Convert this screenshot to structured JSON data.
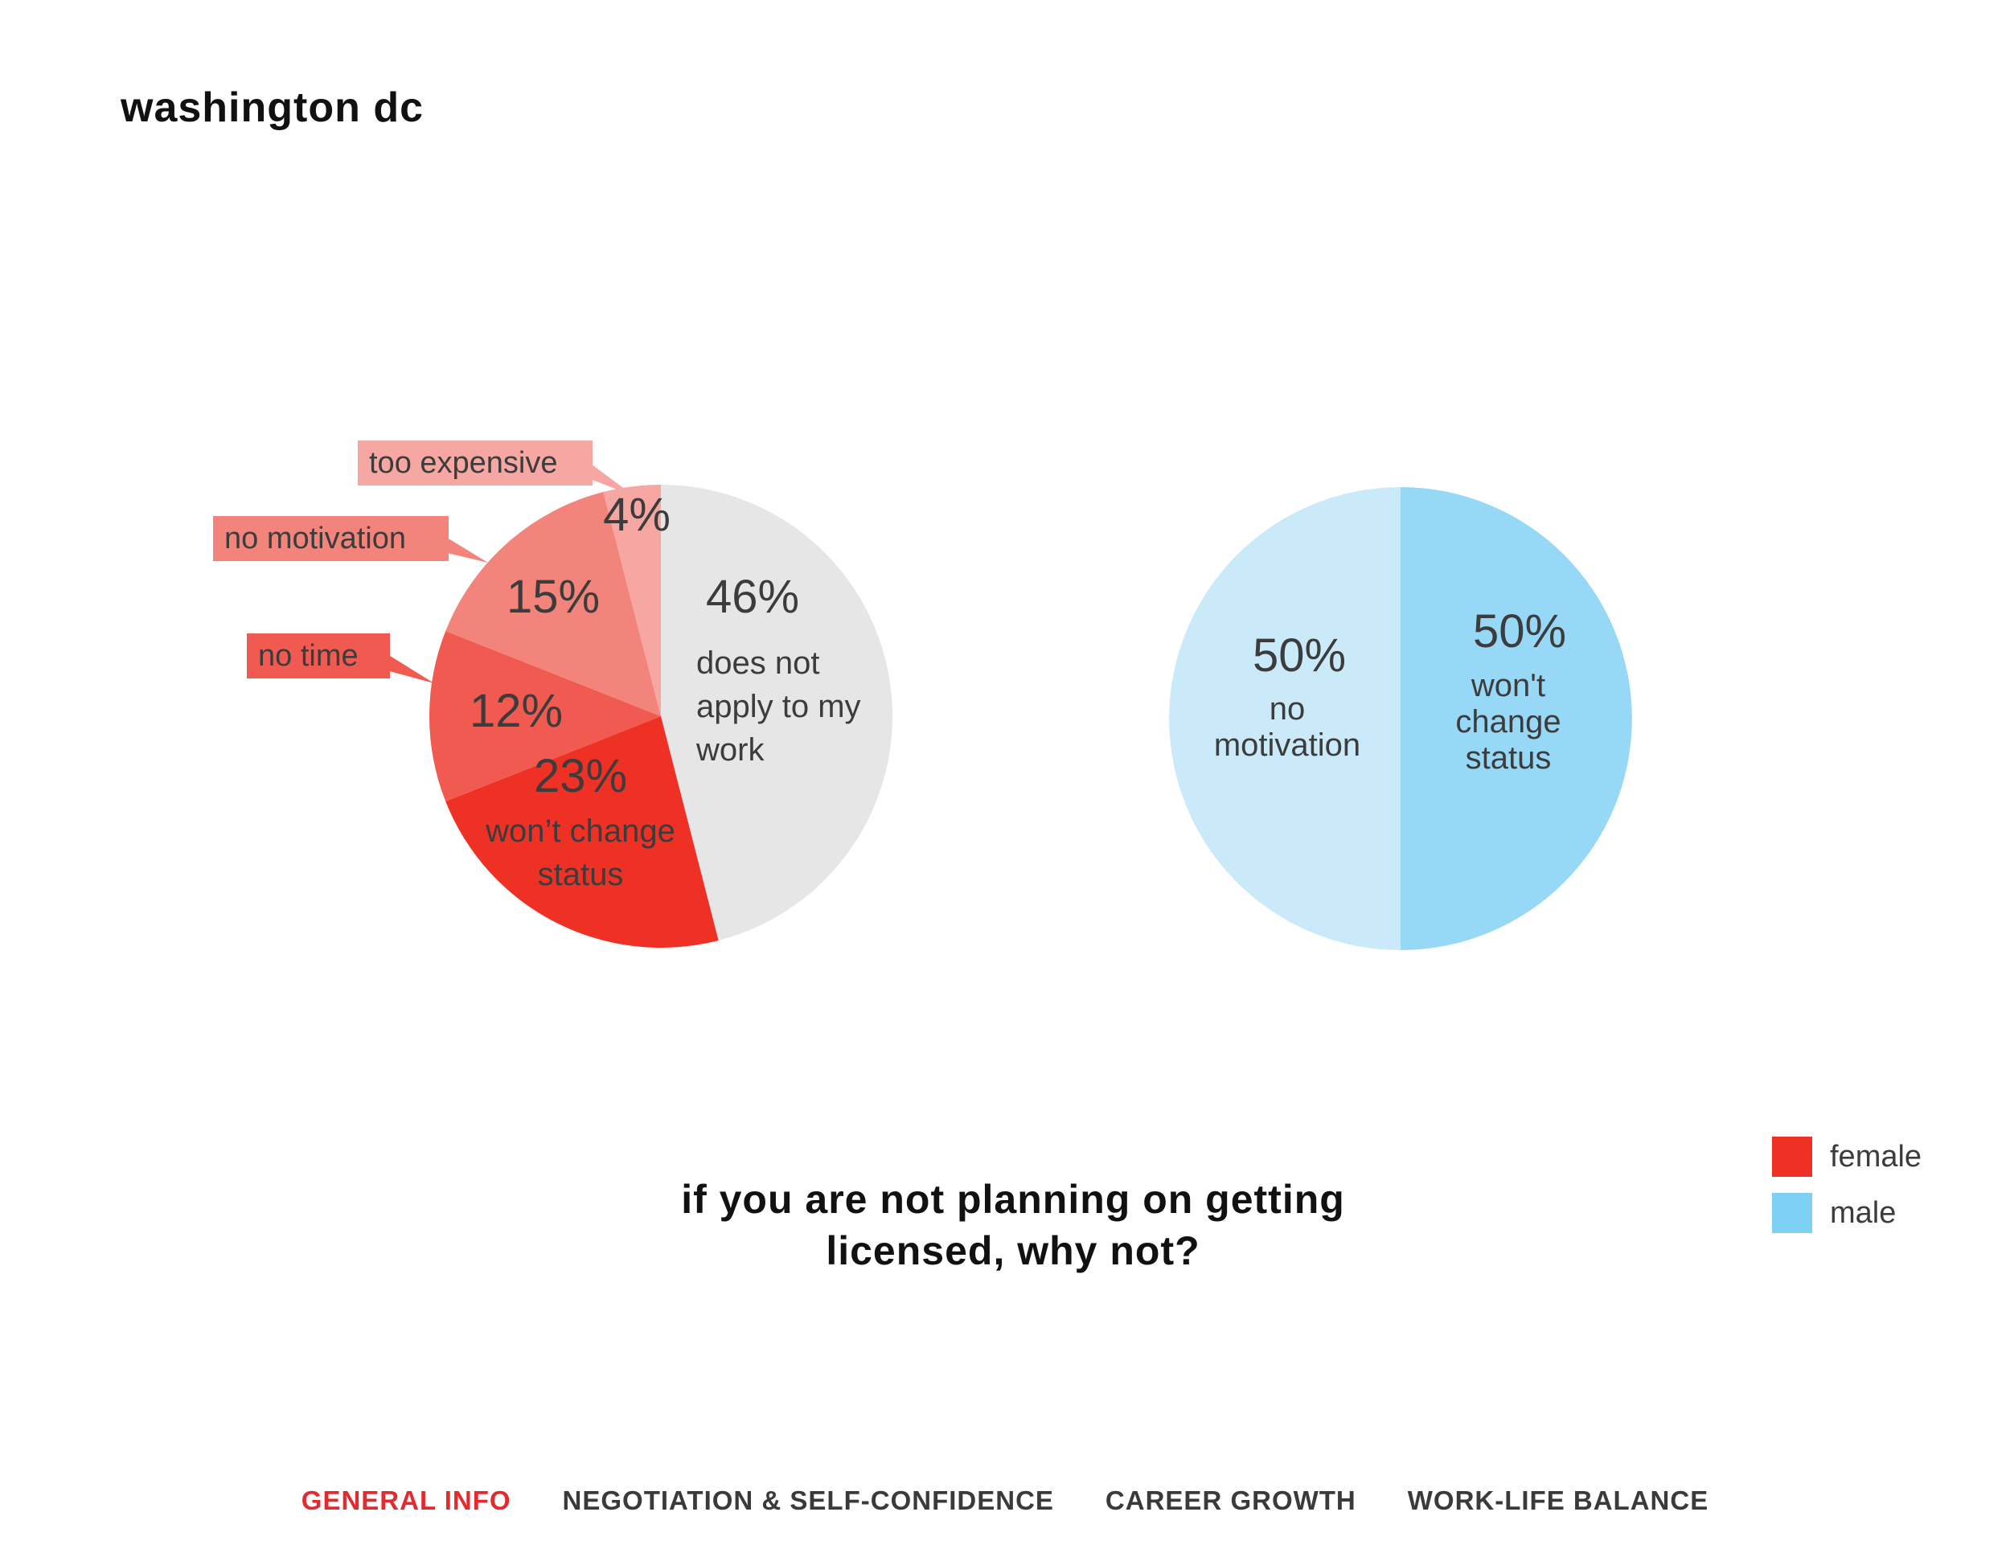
{
  "page": {
    "title": "washington dc",
    "question": "if you are not planning on getting licensed, why not?"
  },
  "legend": [
    {
      "label": "female",
      "color": "#ee3124"
    },
    {
      "label": "male",
      "color": "#7fd0f5"
    }
  ],
  "nav": {
    "items": [
      {
        "label": "GENERAL INFO",
        "active": true
      },
      {
        "label": "NEGOTIATION & SELF-CONFIDENCE",
        "active": false
      },
      {
        "label": "CAREER GROWTH",
        "active": false
      },
      {
        "label": "WORK-LIFE BALANCE",
        "active": false
      }
    ]
  },
  "chart_data": [
    {
      "type": "pie",
      "series": "female",
      "slices": [
        {
          "label": "does not apply to my work",
          "value": 46,
          "value_label": "46%",
          "color": "#e5e6e5"
        },
        {
          "label": "won’t change status",
          "value": 23,
          "value_label": "23%",
          "color": "#ee3124"
        },
        {
          "label": "no time",
          "value": 12,
          "value_label": "12%",
          "color": "#f05a50",
          "callout": "no time"
        },
        {
          "label": "no motivation",
          "value": 15,
          "value_label": "15%",
          "color": "#f3847b",
          "callout": "no motivation"
        },
        {
          "label": "too expensive",
          "value": 4,
          "value_label": "4%",
          "color": "#f7a7a1",
          "callout": "too expensive"
        }
      ],
      "inside_text": {
        "does not apply to my work": [
          "does not",
          "apply to my",
          "work"
        ],
        "won’t change status": [
          "won’t change",
          "status"
        ]
      }
    },
    {
      "type": "pie",
      "series": "male",
      "slices": [
        {
          "label": "won't change status",
          "value": 50,
          "value_label": "50%",
          "color": "#97d8f7"
        },
        {
          "label": "no motivation",
          "value": 50,
          "value_label": "50%",
          "color": "#cae9f9"
        }
      ],
      "inside_text": {
        "won't change status": [
          "won't",
          "change",
          "status"
        ],
        "no motivation": [
          "no",
          "motivation"
        ]
      }
    }
  ]
}
